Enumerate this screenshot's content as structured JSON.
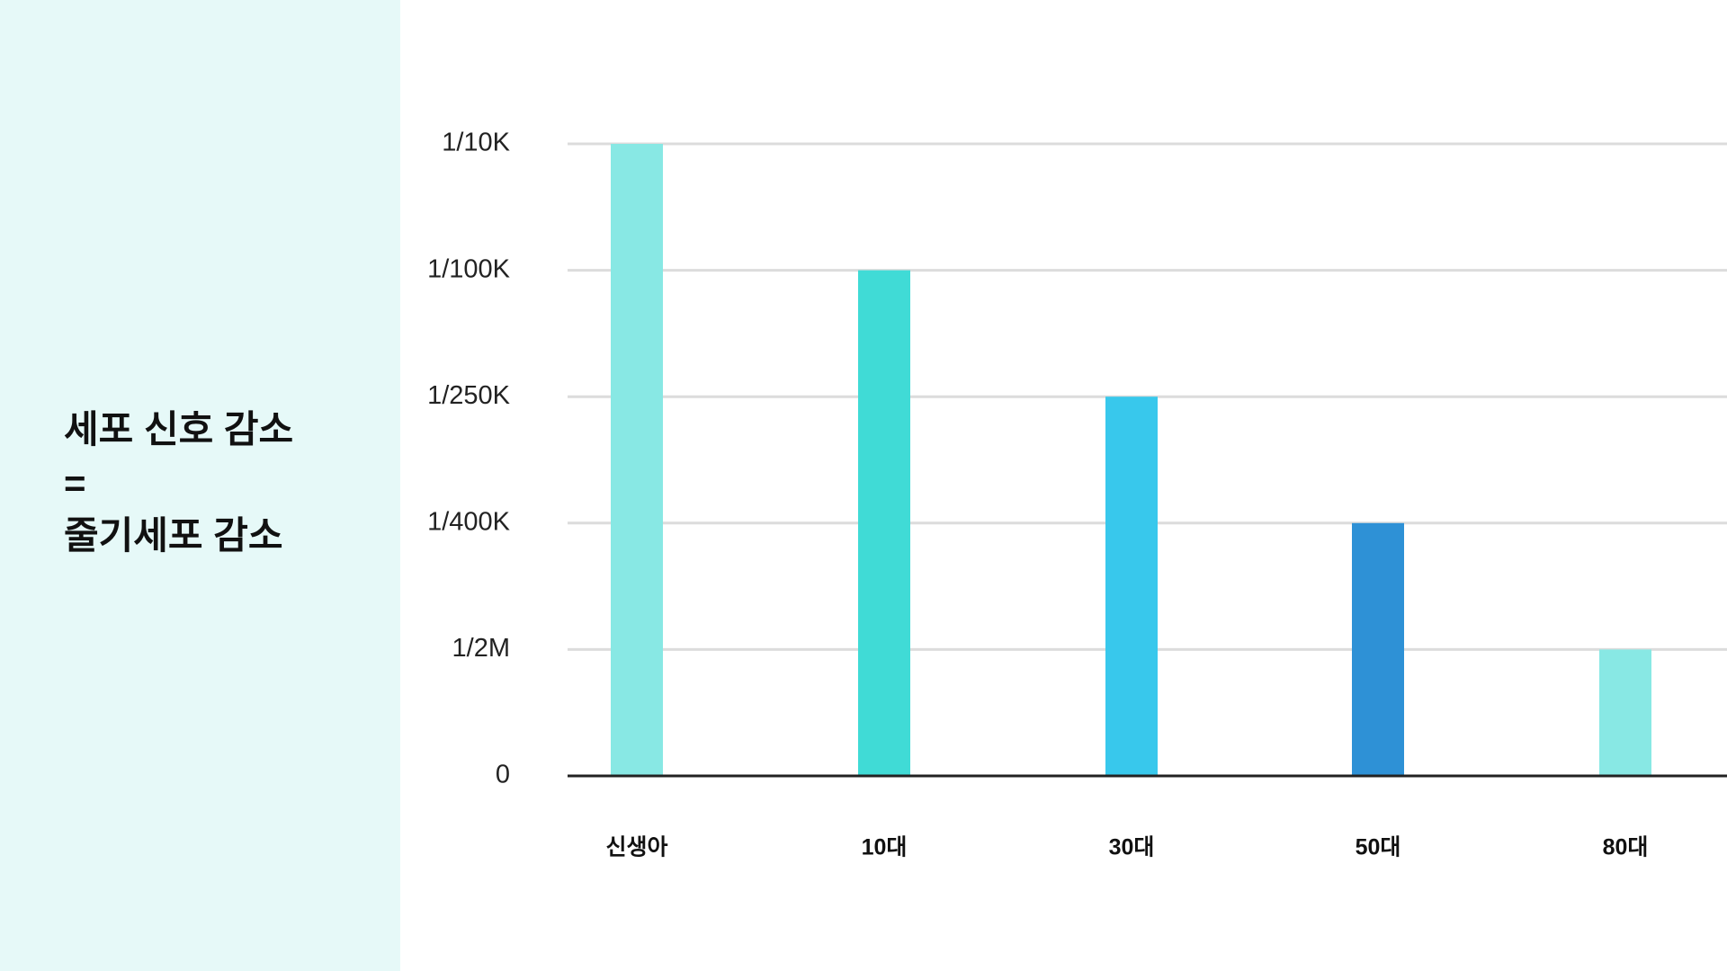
{
  "chart_data": {
    "type": "bar",
    "title_lines": [
      "세포 신호 감소",
      "=",
      "줄기세포 감소"
    ],
    "categories": [
      "신생아",
      "10대",
      "30대",
      "50대",
      "80대"
    ],
    "values": [
      0.0001,
      1e-05,
      4e-06,
      2.5e-06,
      5e-07
    ],
    "colors": [
      "#88e8e4",
      "#40dbd6",
      "#38c8ec",
      "#2e91d6",
      "#88e8e4"
    ],
    "yscale": "tick-spaced",
    "ylim": [
      0,
      0.0001
    ],
    "yticks": [
      0,
      {
        "value": 5e-07,
        "label": "1/2M"
      },
      {
        "value": 2.5e-06,
        "label": "1/400K"
      },
      {
        "value": 4e-06,
        "label": "1/250K"
      },
      {
        "value": 1e-05,
        "label": "1/100K"
      },
      {
        "value": 0.0001,
        "label": "1/10K"
      }
    ],
    "grid": true
  }
}
